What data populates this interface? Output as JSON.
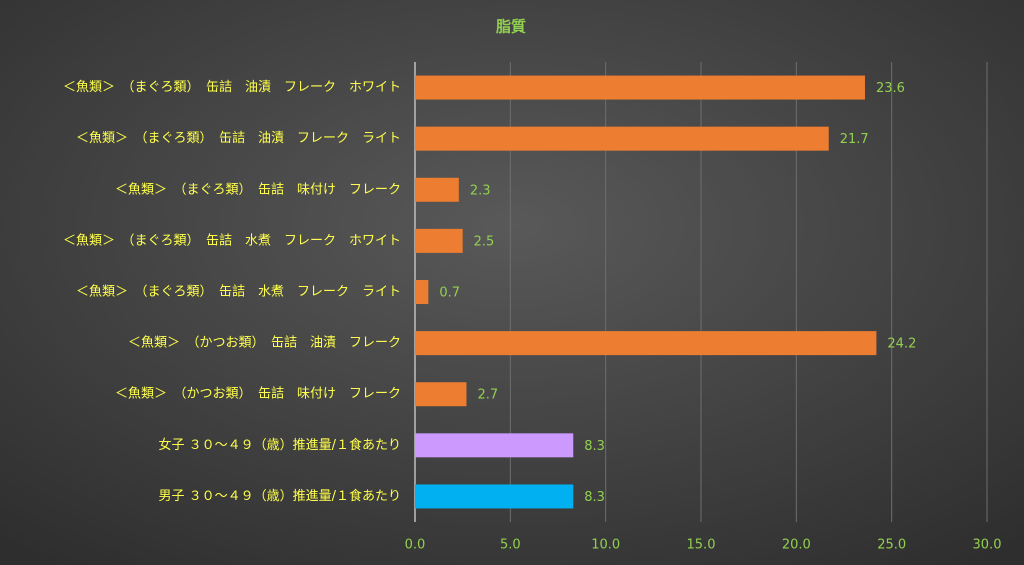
{
  "chart_data": {
    "type": "bar",
    "orientation": "horizontal",
    "title": "脂質",
    "categories": [
      "＜魚類＞　（まぐろ類）　缶詰　油漬　フレーク　ホワイト",
      "＜魚類＞　（まぐろ類）　缶詰　油漬　フレーク　ライト",
      "＜魚類＞　（まぐろ類）　缶詰　味付け　フレーク",
      "＜魚類＞　（まぐろ類）　缶詰　水煮　フレーク　ホワイト",
      "＜魚類＞　（まぐろ類）　缶詰　水煮　フレーク　ライト",
      "＜魚類＞　（かつお類）　缶詰　油漬　フレーク",
      "＜魚類＞　（かつお類）　缶詰　味付け　フレーク",
      "女子 ３０～４９（歳）推進量/１食あたり",
      "男子 ３０～４９（歳）推進量/１食あたり"
    ],
    "values": [
      23.6,
      21.7,
      2.3,
      2.5,
      0.7,
      24.2,
      2.7,
      8.3,
      8.3
    ],
    "colors": [
      "#ed7d31",
      "#ed7d31",
      "#ed7d31",
      "#ed7d31",
      "#ed7d31",
      "#ed7d31",
      "#ed7d31",
      "#cc99ff",
      "#00b0f0"
    ],
    "xlim": [
      0,
      30
    ],
    "xticks": [
      {
        "value": 0,
        "label": "0.0"
      },
      {
        "value": 5,
        "label": "5.0"
      },
      {
        "value": 10,
        "label": "10.0"
      },
      {
        "value": 15,
        "label": "15.0"
      },
      {
        "value": 20,
        "label": "20.0"
      },
      {
        "value": 25,
        "label": "25.0"
      },
      {
        "value": 30,
        "label": "30.0"
      }
    ],
    "grid": true
  }
}
